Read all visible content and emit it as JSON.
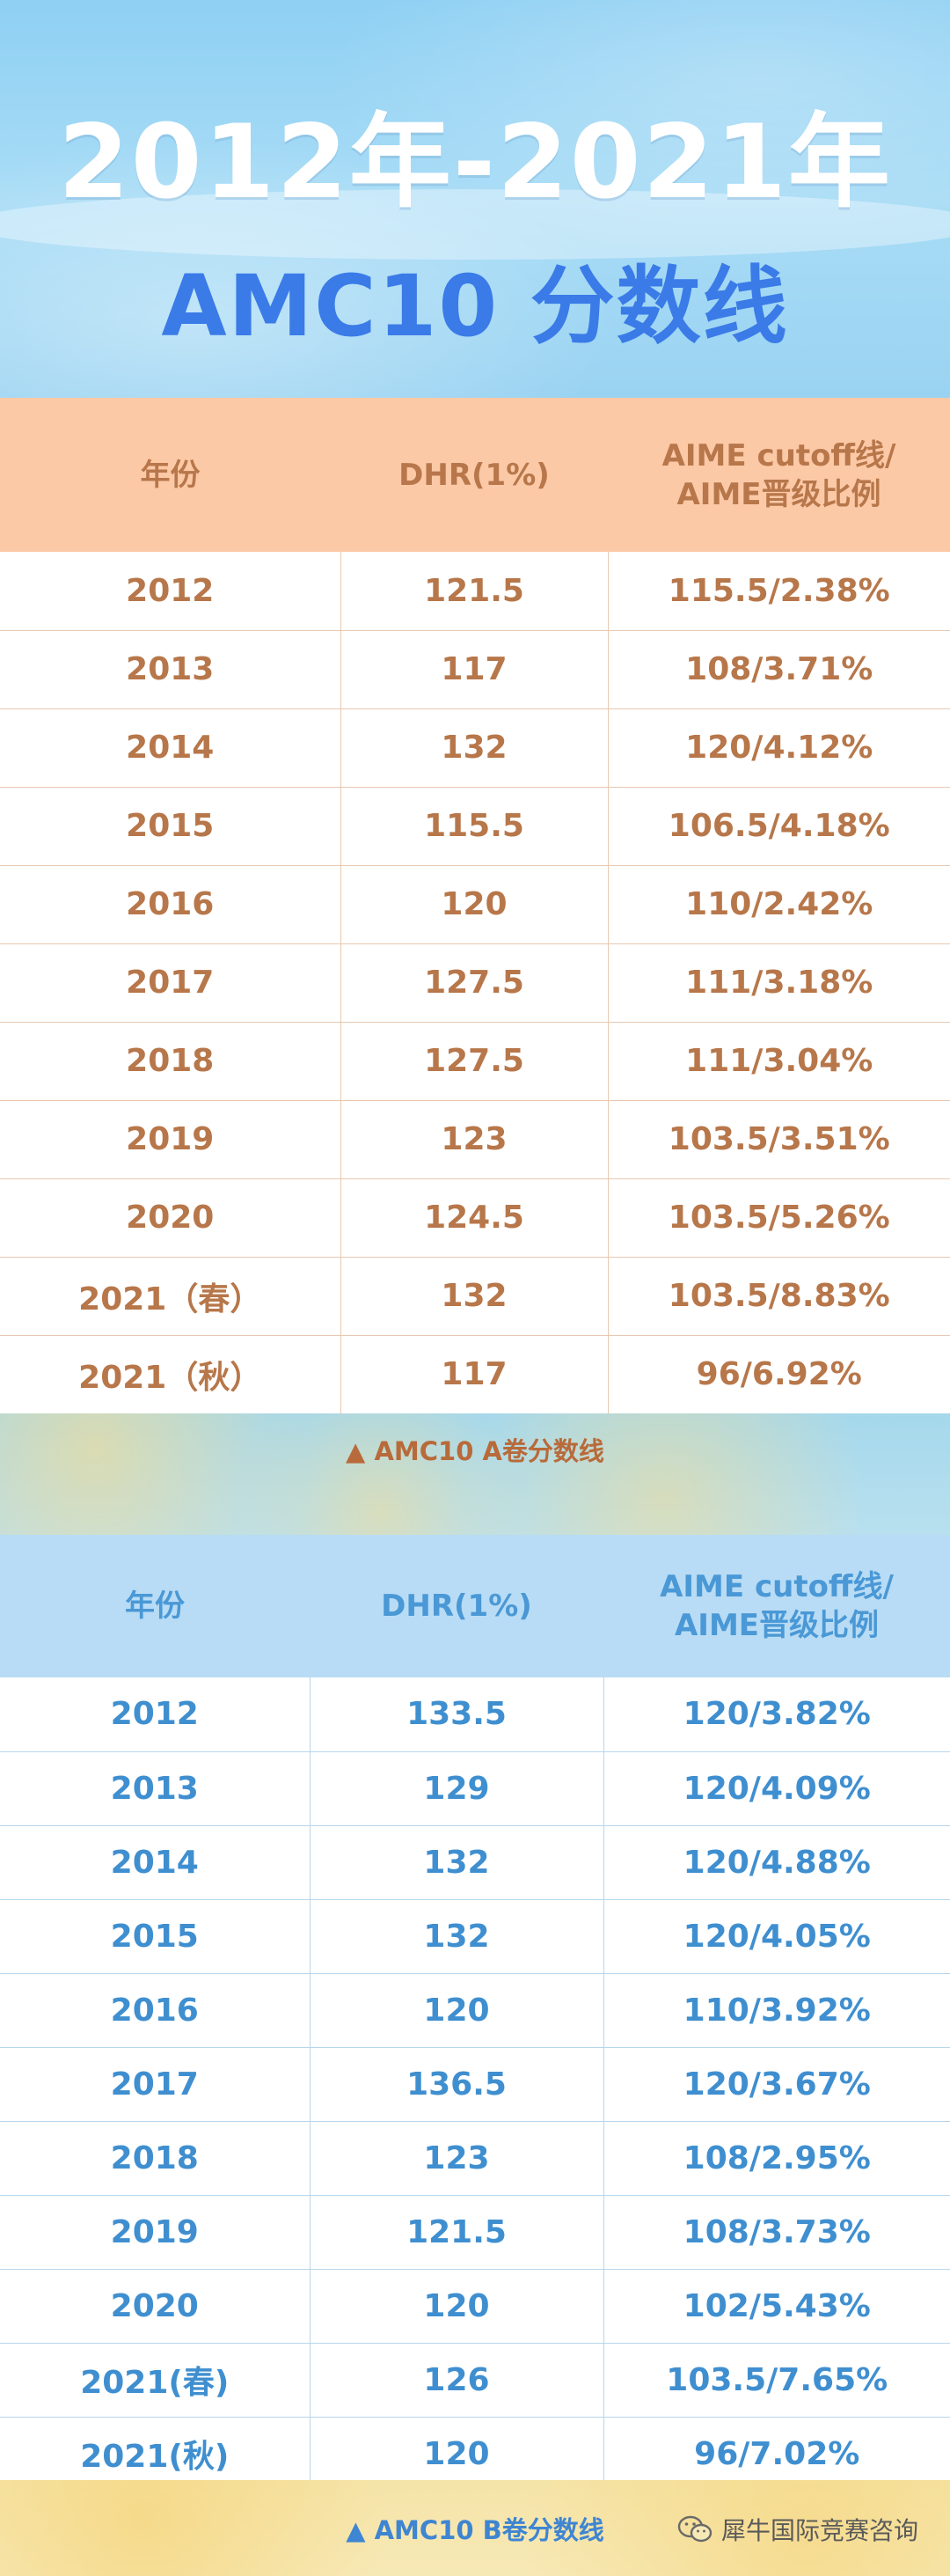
{
  "header": {
    "title_line1": "2012年-2021年",
    "title_line2": "AMC10 分数线"
  },
  "table_a": {
    "columns": [
      "年份",
      "DHR(1%)",
      "AIME cutoff线/",
      "AIME晋级比例"
    ],
    "rows": [
      [
        "2012",
        "121.5",
        "115.5/2.38%"
      ],
      [
        "2013",
        "117",
        "108/3.71%"
      ],
      [
        "2014",
        "132",
        "120/4.12%"
      ],
      [
        "2015",
        "115.5",
        "106.5/4.18%"
      ],
      [
        "2016",
        "120",
        "110/2.42%"
      ],
      [
        "2017",
        "127.5",
        "111/3.18%"
      ],
      [
        "2018",
        "127.5",
        "111/3.04%"
      ],
      [
        "2019",
        "123",
        "103.5/3.51%"
      ],
      [
        "2020",
        "124.5",
        "103.5/5.26%"
      ],
      [
        "2021（春）",
        "132",
        "103.5/8.83%"
      ],
      [
        "2021（秋）",
        "117",
        "96/6.92%"
      ]
    ],
    "caption": "▲ AMC10 A卷分数线"
  },
  "table_b": {
    "columns": [
      "年份",
      "DHR(1%)",
      "AIME cutoff线/",
      "AIME晋级比例"
    ],
    "rows": [
      [
        "2012",
        "133.5",
        "120/3.82%"
      ],
      [
        "2013",
        "129",
        "120/4.09%"
      ],
      [
        "2014",
        "132",
        "120/4.88%"
      ],
      [
        "2015",
        "132",
        "120/4.05%"
      ],
      [
        "2016",
        "120",
        "110/3.92%"
      ],
      [
        "2017",
        "136.5",
        "120/3.67%"
      ],
      [
        "2018",
        "123",
        "108/2.95%"
      ],
      [
        "2019",
        "121.5",
        "108/3.73%"
      ],
      [
        "2020",
        "120",
        "102/5.43%"
      ],
      [
        "2021(春)",
        "126",
        "103.5/7.65%"
      ],
      [
        "2021(秋)",
        "120",
        "96/7.02%"
      ]
    ],
    "caption": "▲ AMC10 B卷分数线"
  },
  "watermark": {
    "icon": "wechat-icon",
    "text": "犀牛国际竞赛咨询"
  },
  "colors": {
    "hero_bg": "#9fd6f4",
    "title_blue": "#3a7be8",
    "table_a_header": "#fcc9a7",
    "table_a_text": "#b7774a",
    "table_b_header": "#b8dcf5",
    "table_b_text": "#3f8fd0"
  }
}
